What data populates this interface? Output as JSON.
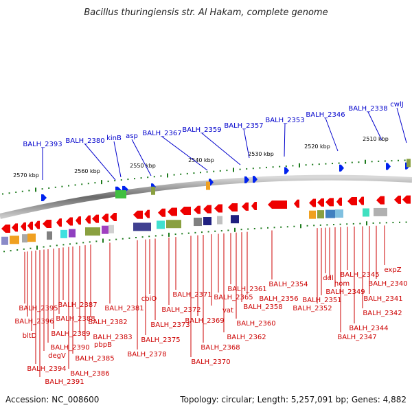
{
  "title": "Bacillus thuringiensis str. Al Hakam, complete genome",
  "footer": {
    "accession": "Accession: NC_008600",
    "summary": "Topology: circular; Length: 5,257,091 bp; Genes: 4,882"
  },
  "colors": {
    "upper_label": "#0000cc",
    "lower_label": "#cc0000",
    "gene_arrow": "#ee0000",
    "direct_strand_arrow": "#0022ee",
    "tick": "#1c7a1c"
  },
  "scale_ticks": [
    "2570 kbp",
    "2560 kbp",
    "2550 kbp",
    "2540 kbp",
    "2530 kbp",
    "2520 kbp",
    "2510 kbp"
  ],
  "upper_labels": [
    "BALH_2393",
    "BALH_2380",
    "kinB",
    "asp",
    "BALH_2367",
    "BALH_2359",
    "BALH_2357",
    "BALH_2353",
    "BALH_2346",
    "BALH_2338",
    "cwlJ"
  ],
  "lower_labels": [
    "BALH_2395",
    "BALH_2396",
    "bltD",
    "BALH_2394",
    "BALH_2391",
    "degV",
    "BALH_2390",
    "BALH_2389",
    "BALH_2388",
    "BALH_2387",
    "BALH_2386",
    "BALH_2385",
    "BALH_2383",
    "pbpB",
    "BALH_2382",
    "BALH_2381",
    "BALH_2378",
    "BALH_2375",
    "cbiO",
    "BALH_2373",
    "BALH_2372",
    "BALH_2371",
    "BALH_2370",
    "BALH_2369",
    "BALH_2368",
    "vat",
    "BALH_2365",
    "BALH_2362",
    "BALH_2361",
    "BALH_2360",
    "BALH_2358",
    "BALH_2356",
    "BALH_2354",
    "BALH_2352",
    "BALH_2351",
    "ddl",
    "hom",
    "BALH_2349",
    "BALH_2347",
    "BALH_2345",
    "BALH_2344",
    "BALH_2342",
    "BALH_2341",
    "BALH_2340",
    "expZ"
  ]
}
